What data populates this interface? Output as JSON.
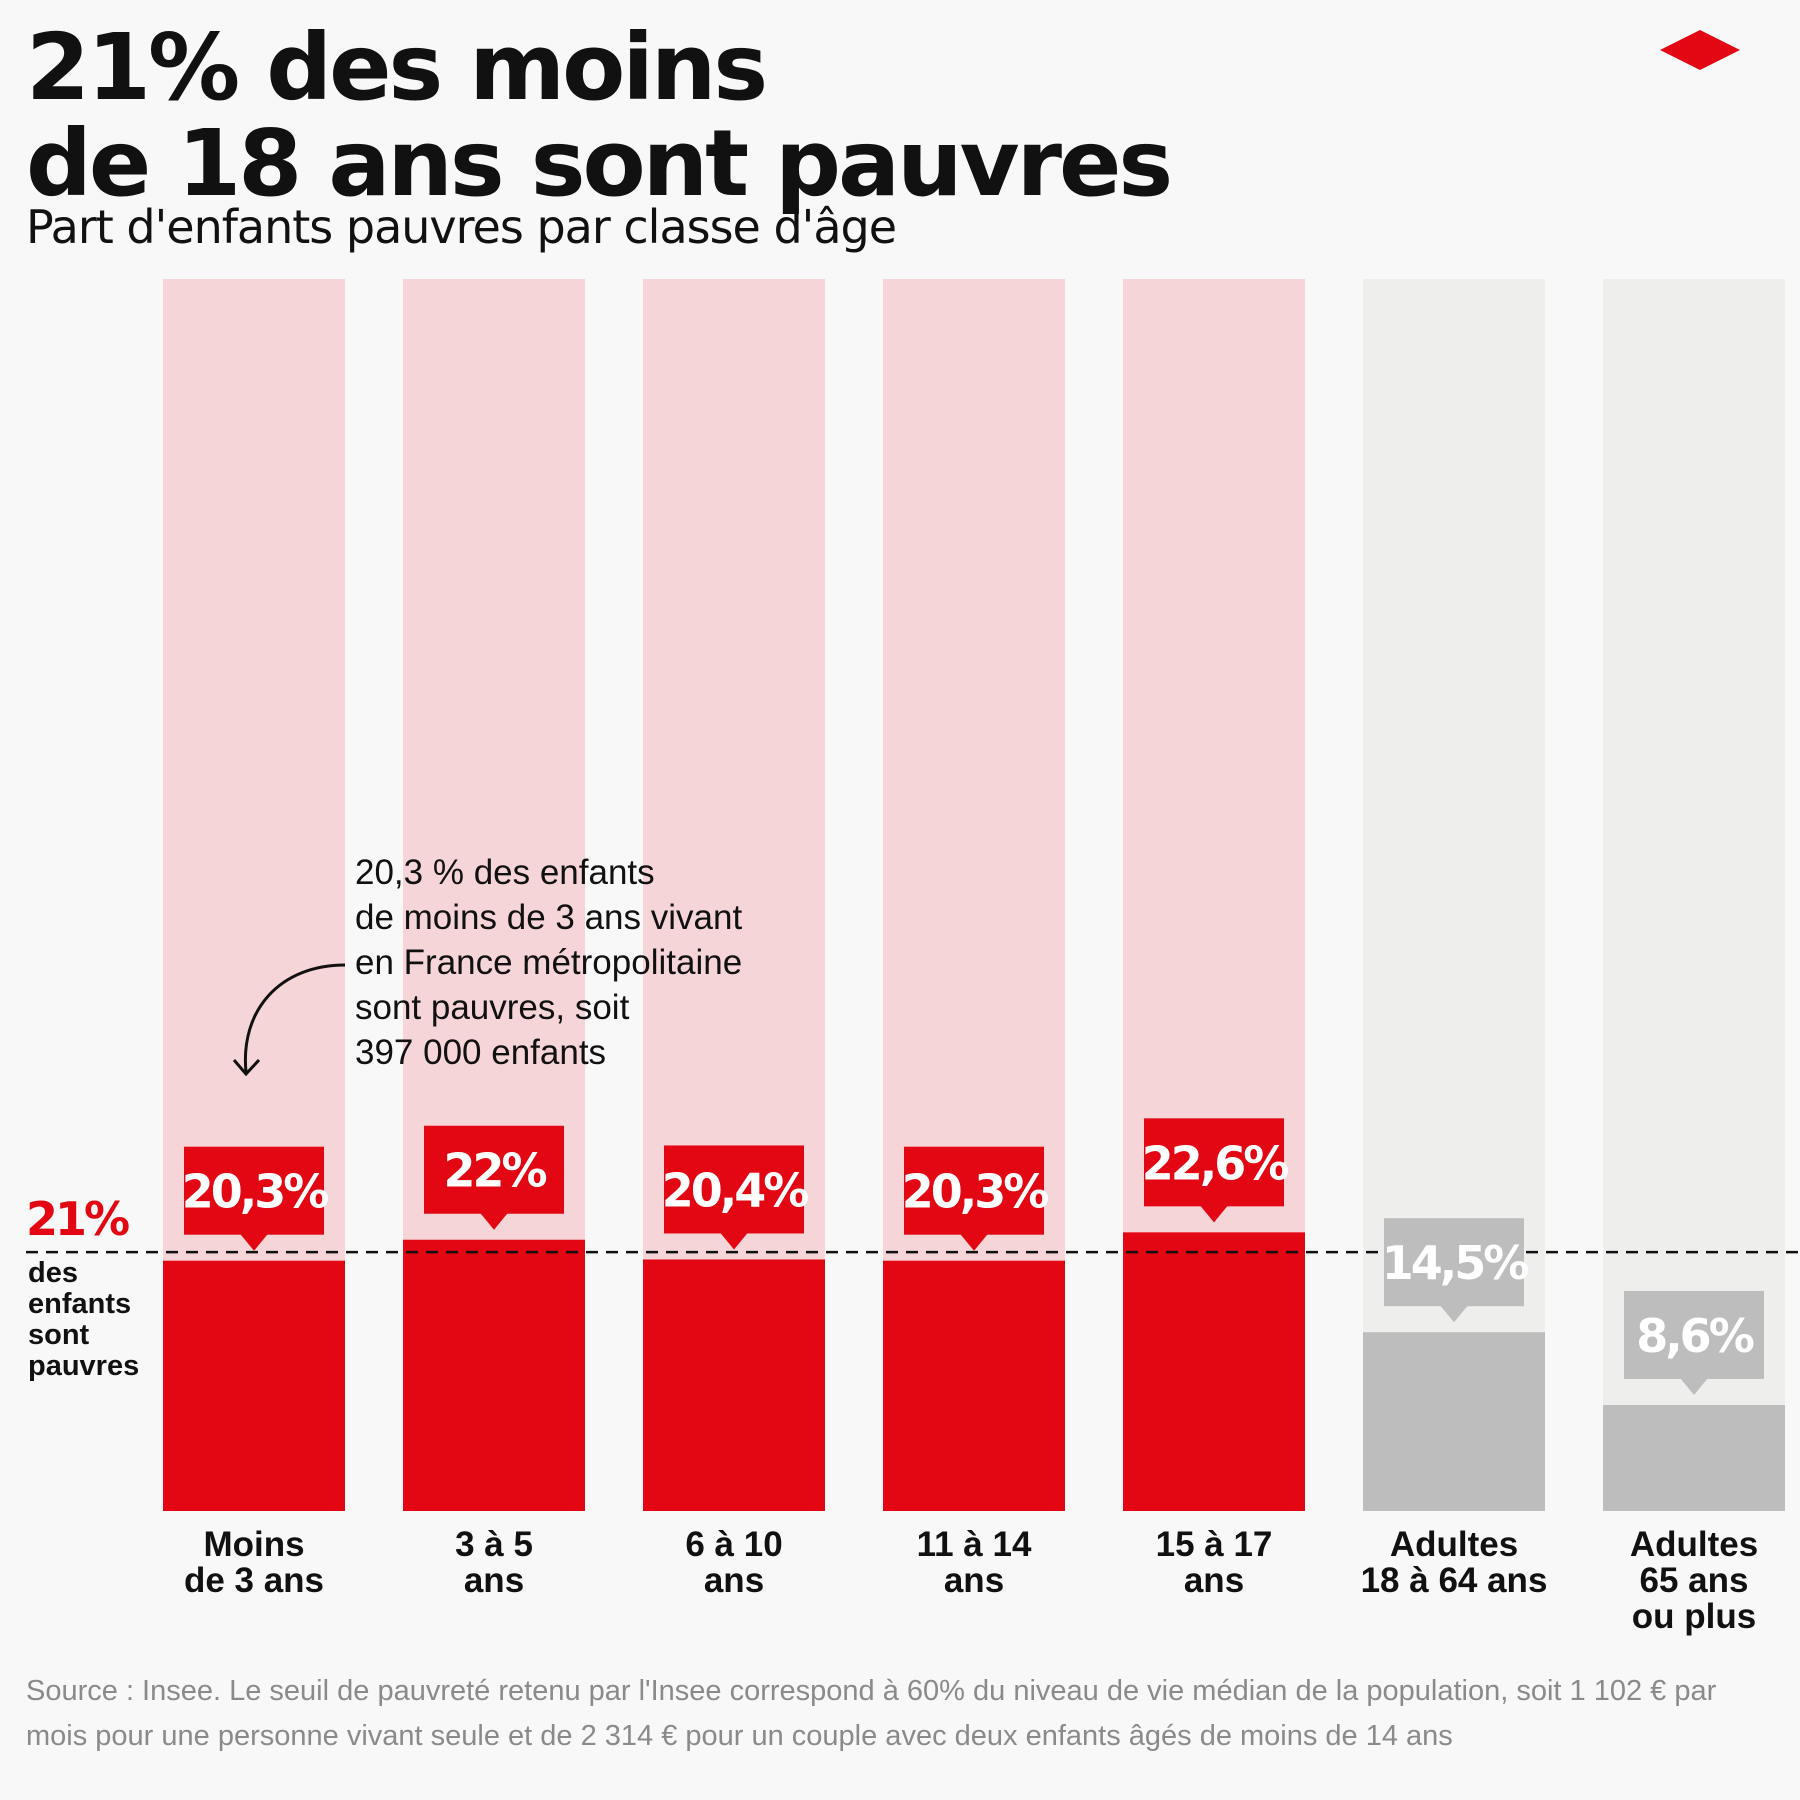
{
  "title_lines": [
    "21% des moins",
    "de 18 ans sont pauvres"
  ],
  "subtitle": "Part d'enfants pauvres par classe d'âge",
  "colors": {
    "child_bar": "#e30613",
    "child_bg": "#f5d5d8",
    "adult_bar": "#bdbdbd",
    "adult_bg": "#eeeeec",
    "reference": "#e30613",
    "logo": "#e30613"
  },
  "annotation": {
    "lines": [
      "20,3 % des enfants",
      "de moins de 3 ans vivant",
      "en France métropolitaine",
      "sont pauvres, soit",
      "397 000 enfants"
    ]
  },
  "reference": {
    "value_label": "21%",
    "value": 21,
    "text_lines": [
      "des",
      "enfants",
      "sont",
      "pauvres"
    ]
  },
  "chart_data": {
    "type": "bar",
    "title": "21% des moins de 18 ans sont pauvres",
    "subtitle": "Part d'enfants pauvres par classe d'âge",
    "categories": [
      {
        "lines": [
          "Moins",
          "de 3 ans"
        ]
      },
      {
        "lines": [
          "3 à 5",
          "ans"
        ]
      },
      {
        "lines": [
          "6 à 10",
          "ans"
        ]
      },
      {
        "lines": [
          "11 à 14",
          "ans"
        ]
      },
      {
        "lines": [
          "15 à 17",
          "ans"
        ]
      },
      {
        "lines": [
          "Adultes",
          "18 à 64 ans"
        ]
      },
      {
        "lines": [
          "Adultes",
          "65 ans",
          "ou plus"
        ]
      }
    ],
    "values": [
      20.3,
      22,
      20.4,
      20.3,
      22.6,
      14.5,
      8.6
    ],
    "value_labels": [
      "20,3%",
      "22%",
      "20,4%",
      "20,3%",
      "22,6%",
      "14,5%",
      "8,6%"
    ],
    "groups": [
      "child",
      "child",
      "child",
      "child",
      "child",
      "adult",
      "adult"
    ],
    "reference_line": 21,
    "ylim": [
      0,
      100
    ]
  },
  "source": "Source : Insee. Le seuil de pauvreté retenu par l'Insee correspond à 60% du niveau de vie médian de la population, soit 1 102 € par mois pour une personne vivant seule et de 2 314 € pour un couple avec deux enfants âgés de moins de 14 ans"
}
